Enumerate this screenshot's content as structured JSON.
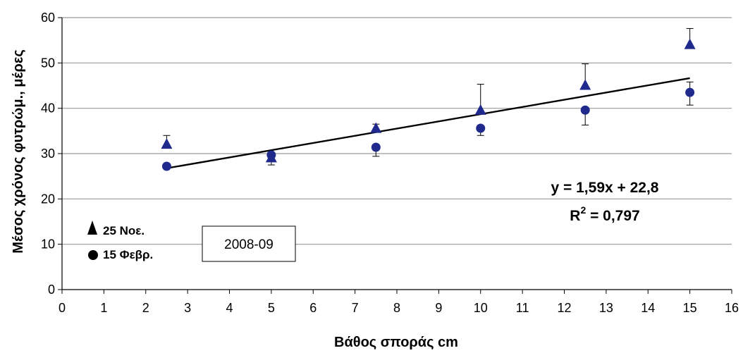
{
  "chart_data": {
    "type": "scatter",
    "xlabel": "Βάθος σποράς cm",
    "ylabel": "Μέσος χρόνος φυτρώμ., μέρες",
    "xlim": [
      0,
      16
    ],
    "ylim": [
      0,
      60
    ],
    "xticks": [
      "0",
      "1",
      "2",
      "3",
      "4",
      "5",
      "6",
      "7",
      "8",
      "9",
      "10",
      "11",
      "12",
      "13",
      "14",
      "15",
      "16"
    ],
    "yticks": [
      "0",
      "10",
      "20",
      "30",
      "40",
      "50",
      "60"
    ],
    "grid": "horizontal",
    "legend_position": "bottom-left",
    "series": [
      {
        "name": "25 Νοε.",
        "marker": "triangle",
        "color": "#1f2a8c",
        "points": [
          {
            "x": 2.5,
            "y": 32,
            "err_up": 2,
            "err_down": 0
          },
          {
            "x": 5,
            "y": 29,
            "err_up": 0,
            "err_down": 1.5
          },
          {
            "x": 7.5,
            "y": 35.5,
            "err_up": 1,
            "err_down": 0
          },
          {
            "x": 10,
            "y": 39.5,
            "err_up": 5.8,
            "err_down": 0
          },
          {
            "x": 12.5,
            "y": 45,
            "err_up": 4.8,
            "err_down": 0
          },
          {
            "x": 15,
            "y": 54,
            "err_up": 3.6,
            "err_down": 0
          }
        ]
      },
      {
        "name": "15 Φεβρ.",
        "marker": "circle",
        "color": "#1f2a8c",
        "points": [
          {
            "x": 2.5,
            "y": 27.2,
            "err_up": 0,
            "err_down": 0
          },
          {
            "x": 5,
            "y": 29.7,
            "err_up": 0,
            "err_down": 0
          },
          {
            "x": 7.5,
            "y": 31.4,
            "err_up": 0,
            "err_down": 2
          },
          {
            "x": 10,
            "y": 35.6,
            "err_up": 0,
            "err_down": 1.6
          },
          {
            "x": 12.5,
            "y": 39.6,
            "err_up": 0,
            "err_down": 3.3
          },
          {
            "x": 15,
            "y": 43.5,
            "err_up": 2.3,
            "err_down": 2.8
          }
        ]
      }
    ],
    "trendline": {
      "slope": 1.59,
      "intercept": 22.8,
      "x_range": [
        2.5,
        15
      ],
      "equation": "y = 1,59x + 22,8",
      "r2_label": "R",
      "r2_exponent": "2",
      "r2_value": " = 0,797"
    },
    "annotation_box": "2008-09"
  }
}
